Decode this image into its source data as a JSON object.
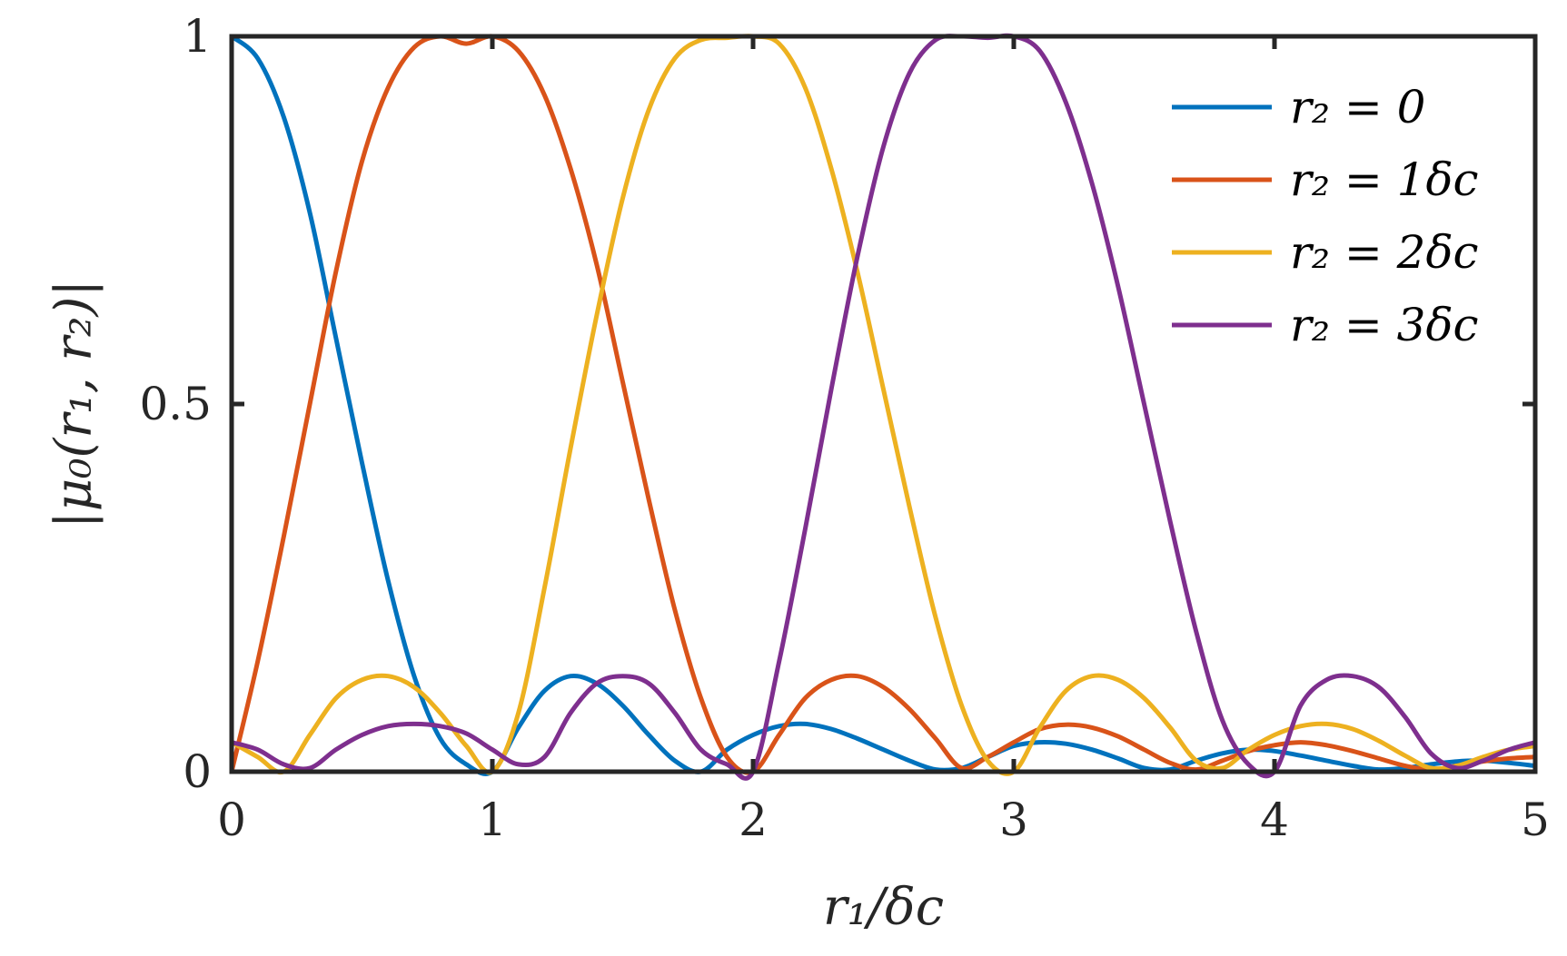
{
  "chart_data": {
    "type": "line",
    "xlabel": "r₁/δc",
    "ylabel": "|μ₀(r₁, r₂)|",
    "xlim": [
      0,
      5
    ],
    "ylim": [
      0,
      1
    ],
    "x_ticks": [
      "0",
      "1",
      "2",
      "3",
      "4",
      "5"
    ],
    "y_ticks": [
      "0",
      "0.5",
      "1"
    ],
    "grid": false,
    "legend_position": "top-right",
    "x": [
      0,
      0.1,
      0.2,
      0.3,
      0.4,
      0.5,
      0.6,
      0.7,
      0.8,
      0.9,
      1.0,
      1.1,
      1.2,
      1.3,
      1.4,
      1.5,
      1.6,
      1.7,
      1.8,
      1.9,
      2.0,
      2.1,
      2.2,
      2.3,
      2.4,
      2.5,
      2.6,
      2.7,
      2.8,
      2.9,
      3.0,
      3.1,
      3.2,
      3.3,
      3.4,
      3.5,
      3.6,
      3.7,
      3.8,
      3.9,
      4.0,
      4.1,
      4.2,
      4.3,
      4.4,
      4.5,
      4.6,
      4.7,
      4.8,
      4.9,
      5.0
    ],
    "series": [
      {
        "name": "r₂ = 0",
        "color": "#0072BD",
        "values": [
          1.0,
          0.97,
          0.89,
          0.76,
          0.59,
          0.42,
          0.26,
          0.13,
          0.045,
          0.01,
          0.0,
          0.06,
          0.11,
          0.13,
          0.12,
          0.09,
          0.05,
          0.015,
          0.0,
          0.03,
          0.05,
          0.062,
          0.065,
          0.058,
          0.045,
          0.03,
          0.015,
          0.003,
          0.005,
          0.02,
          0.035,
          0.04,
          0.038,
          0.03,
          0.018,
          0.005,
          0.003,
          0.015,
          0.025,
          0.03,
          0.028,
          0.022,
          0.015,
          0.008,
          0.003,
          0.005,
          0.01,
          0.014,
          0.015,
          0.012,
          0.008
        ]
      },
      {
        "name": "r₂ = 1δc",
        "color": "#D95319",
        "values": [
          0.0,
          0.15,
          0.32,
          0.5,
          0.68,
          0.83,
          0.93,
          0.985,
          1.0,
          0.99,
          1.0,
          0.98,
          0.92,
          0.82,
          0.69,
          0.53,
          0.37,
          0.22,
          0.1,
          0.02,
          0.0,
          0.05,
          0.1,
          0.125,
          0.13,
          0.115,
          0.085,
          0.045,
          0.005,
          0.02,
          0.04,
          0.058,
          0.064,
          0.06,
          0.048,
          0.03,
          0.012,
          0.003,
          0.015,
          0.028,
          0.036,
          0.04,
          0.036,
          0.028,
          0.018,
          0.008,
          0.003,
          0.008,
          0.014,
          0.018,
          0.02
        ]
      },
      {
        "name": "r₂ = 2δc",
        "color": "#EDB120",
        "values": [
          0.04,
          0.02,
          0.0,
          0.05,
          0.1,
          0.125,
          0.13,
          0.115,
          0.08,
          0.035,
          0.0,
          0.08,
          0.25,
          0.44,
          0.62,
          0.78,
          0.9,
          0.97,
          0.995,
          0.998,
          1.0,
          0.99,
          0.93,
          0.82,
          0.68,
          0.52,
          0.36,
          0.21,
          0.09,
          0.015,
          0.0,
          0.06,
          0.11,
          0.13,
          0.125,
          0.1,
          0.06,
          0.015,
          0.005,
          0.03,
          0.05,
          0.062,
          0.065,
          0.058,
          0.042,
          0.022,
          0.005,
          0.008,
          0.02,
          0.03,
          0.035
        ]
      },
      {
        "name": "r₂ = 3δc",
        "color": "#7E2F8E",
        "values": [
          0.04,
          0.03,
          0.01,
          0.005,
          0.03,
          0.05,
          0.062,
          0.065,
          0.062,
          0.052,
          0.03,
          0.01,
          0.02,
          0.08,
          0.12,
          0.13,
          0.12,
          0.08,
          0.03,
          0.01,
          0.0,
          0.15,
          0.33,
          0.52,
          0.7,
          0.85,
          0.95,
          0.995,
          1.0,
          0.998,
          1.0,
          0.98,
          0.91,
          0.8,
          0.66,
          0.5,
          0.34,
          0.19,
          0.07,
          0.01,
          0.0,
          0.09,
          0.125,
          0.13,
          0.115,
          0.075,
          0.025,
          0.005,
          0.015,
          0.03,
          0.04
        ]
      }
    ]
  }
}
